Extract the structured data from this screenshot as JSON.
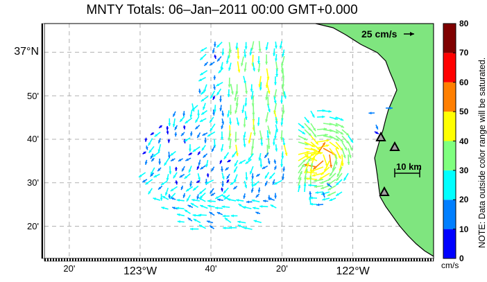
{
  "title": "MNTY Totals: 06–Jan–2011 00:00 GMT+0.000",
  "axes": {
    "x_ticks": [
      {
        "lon": -123.333,
        "label": "20'"
      },
      {
        "lon": -123.0,
        "label": "123°W",
        "major": true
      },
      {
        "lon": -122.667,
        "label": "40'"
      },
      {
        "lon": -122.333,
        "label": "20'"
      },
      {
        "lon": -122.0,
        "label": "122°W",
        "major": true
      }
    ],
    "y_ticks": [
      {
        "lat": 37.0,
        "label": "37°N",
        "major": true
      },
      {
        "lat": 36.8333,
        "label": "50'"
      },
      {
        "lat": 36.6667,
        "label": "40'"
      },
      {
        "lat": 36.5,
        "label": "30'"
      },
      {
        "lat": 36.3333,
        "label": "20'"
      }
    ],
    "lon_range": [
      -123.45,
      -121.62
    ],
    "lat_range": [
      36.21,
      37.11
    ],
    "grid": true
  },
  "reference_vector": {
    "label": "25 cm/s",
    "speed": 25
  },
  "scale_bar": {
    "label": "10 km"
  },
  "colorbar": {
    "unit": "cm/s",
    "ticks": [
      "0",
      "10",
      "20",
      "30",
      "40",
      "50",
      "60",
      "70",
      "80"
    ],
    "colors": [
      "#0000ff",
      "#007fff",
      "#00ffff",
      "#7fff7f",
      "#ffff00",
      "#ff7f00",
      "#ff0000",
      "#7f0000"
    ],
    "note": "NOTE: Data outside color range will be saturated."
  },
  "colors": {
    "land": "#7fe57f",
    "coast": "#000000",
    "grid": "#b0b0b0"
  }
}
